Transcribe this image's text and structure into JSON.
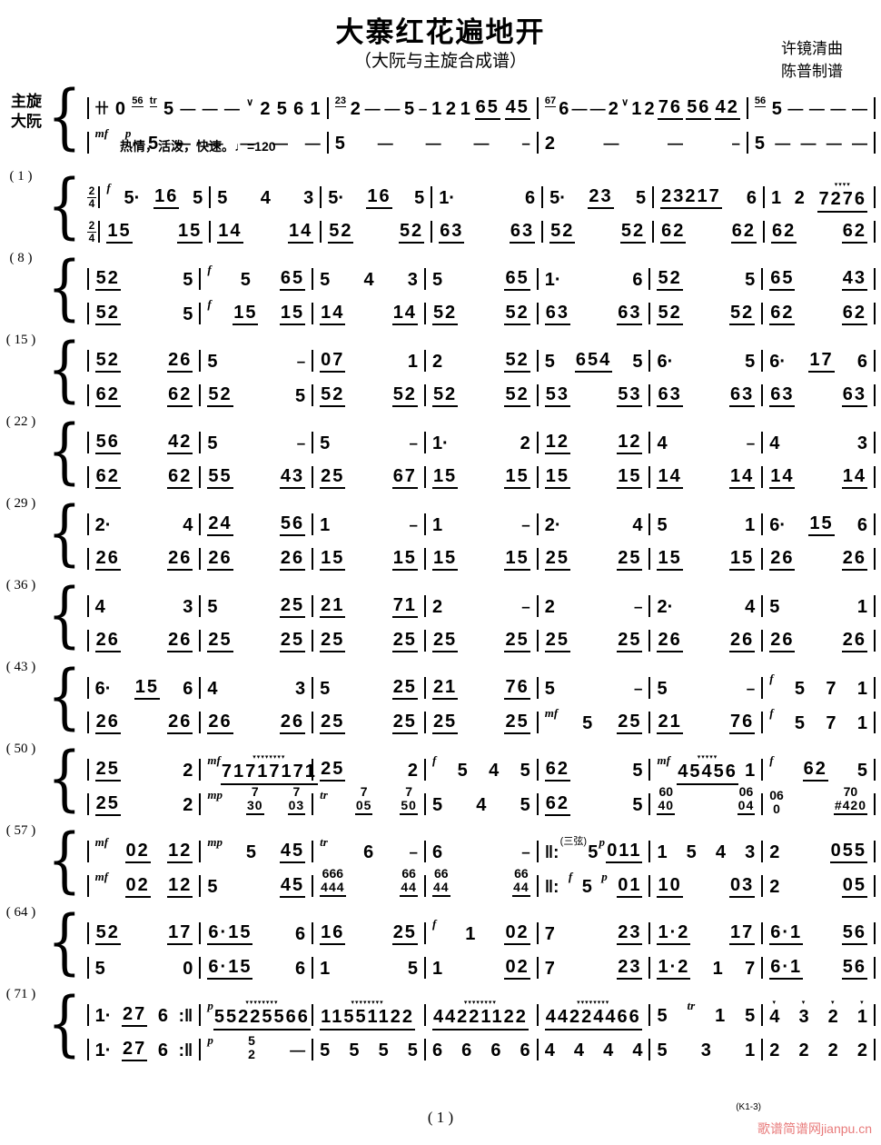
{
  "header": {
    "title": "大寨红花遍地开",
    "subtitle": "（大阮与主旋合成谱）",
    "credit1": "许镜清曲",
    "credit2": "陈普制谱"
  },
  "parts": {
    "upper": "主旋",
    "lower": "大阮"
  },
  "tempo_text": "热情，活泼，快速。♩=120",
  "colors": {
    "ink": "#000000",
    "watermark": "#e87a7a",
    "paper": "#ffffff"
  },
  "intro": {
    "flex": [
      30,
      26,
      26,
      15
    ],
    "upper": [
      "卄 0 ^56 ^tr 5 — — — ∨ 2 5 6 1",
      "^23 2 — — 5 – 1 2 1 65 45",
      "^67 6 — — 2 ∨ 1 2 76 56 42",
      "^56 5 — — — —"
    ],
    "lower": [
      "*mf *p 5 — — — — —",
      "5 — — — –",
      "2 — — –",
      "5 — — — —"
    ]
  },
  "systems": [
    {
      "label": "( 1 )",
      "timesig": "2/4",
      "upper": [
        "*f 5· 16 5",
        "5 4 3",
        "5· 16 5",
        "1· 6",
        "5· 23 5",
        "23217 6",
        "1 2 !7276"
      ],
      "lower": [
        "15 15",
        "14 14",
        "52 52",
        "63 63",
        "52 52",
        "62 62",
        "62 62"
      ]
    },
    {
      "label": "( 8 )",
      "upper": [
        "52 5",
        "*f 5 65",
        "5 4 3",
        "5 65",
        "1· 6",
        "52 5",
        "65 43"
      ],
      "lower": [
        "52 5",
        "*f 15 15",
        "14 14",
        "52 52",
        "63 63",
        "52 52",
        "62 62"
      ]
    },
    {
      "label": "( 15 )",
      "upper": [
        "52 26",
        "5 –",
        "07 1",
        "2 52",
        "5 654 5",
        "6· 5",
        "6· 17 6"
      ],
      "lower": [
        "62 62",
        "52 5",
        "52 52",
        "52 52",
        "53 53",
        "63 63",
        "63 63"
      ]
    },
    {
      "label": "( 22 )",
      "upper": [
        "56 42",
        "5 –",
        "5 –",
        "1· 2",
        "12 12",
        "4 –",
        "4 3"
      ],
      "lower": [
        "62 62",
        "55 43",
        "25 67",
        "15 15",
        "15 15",
        "14 14",
        "14 14"
      ]
    },
    {
      "label": "( 29 )",
      "upper": [
        "2· 4",
        "24 56",
        "1 –",
        "1 –",
        "2· 4",
        "5 1",
        "6· 15 6"
      ],
      "lower": [
        "26 26",
        "26 26",
        "15 15",
        "15 15",
        "25 25",
        "15 15",
        "26 26"
      ]
    },
    {
      "label": "( 36 )",
      "upper": [
        "4 3",
        "5 25",
        "21 71",
        "2 –",
        "2 –",
        "2· 4",
        "5 1"
      ],
      "lower": [
        "26 26",
        "25 25",
        "25 25",
        "25 25",
        "25 25",
        "26 26",
        "26 26"
      ]
    },
    {
      "label": "( 43 )",
      "upper": [
        "6· 15 6",
        "4 3",
        "5 25",
        "21 76",
        "5 –",
        "5 –",
        "*f 5 7 1"
      ],
      "lower": [
        "26 26",
        "26 26",
        "25 25",
        "25 25",
        "*mf 5 25",
        "21 76",
        "*f 5 7 1"
      ]
    },
    {
      "label": "( 50 )",
      "upper": [
        "25 2",
        "*mf !71717171",
        "25 2",
        "*f 5 4 5",
        "62 5",
        "*mf !45456 1",
        "*f 62 5"
      ],
      "lower": [
        "25 2",
        "*mp 7/30 7/03",
        "*tr 7/05 7/50",
        "5 4 5",
        "62 5",
        "60/40 06/04",
        "06/0 70/#420"
      ]
    },
    {
      "label": "( 57 )",
      "upper": [
        "*mf 02 12",
        "*mp 5 45",
        "*tr 6 –",
        "6 –",
        "‖: ~(三弦) 5 *p 011",
        "1 5 4 3",
        "2 055"
      ],
      "lower": [
        "*mf 02 12",
        "5 45",
        "666/444 66/44",
        "66/44 66/44",
        "‖: *f 5 *p 01",
        "10 03",
        "2 05"
      ]
    },
    {
      "label": "( 64 )",
      "upper": [
        "52 17",
        "6·15 6",
        "16 25",
        "*f 1 02",
        "7 23",
        "1·2 17",
        "6·1 56"
      ],
      "lower": [
        "5 0",
        "6·15 6",
        "1 5",
        "1 02",
        "7 23",
        "1·2 1 7",
        "6·1 56"
      ]
    },
    {
      "label": "( 71 )",
      "upper": [
        "1· 27 6 :‖",
        "*p !55225566",
        "!11551122",
        "!44221122",
        "!44224466",
        "5 *tr 1 5",
        "!4 !3 !2 !1"
      ],
      "lower": [
        "1· 27 6 :‖",
        "*p 5/2 —",
        "5 5 5 5",
        "6 6 6 6",
        "4 4 4 4",
        "5 3 1",
        "2 2 2 2"
      ]
    }
  ],
  "footer": {
    "page": "( 1 )",
    "code": "(K1-3)",
    "watermark": "歌谱简谱网jianpu.cn"
  }
}
